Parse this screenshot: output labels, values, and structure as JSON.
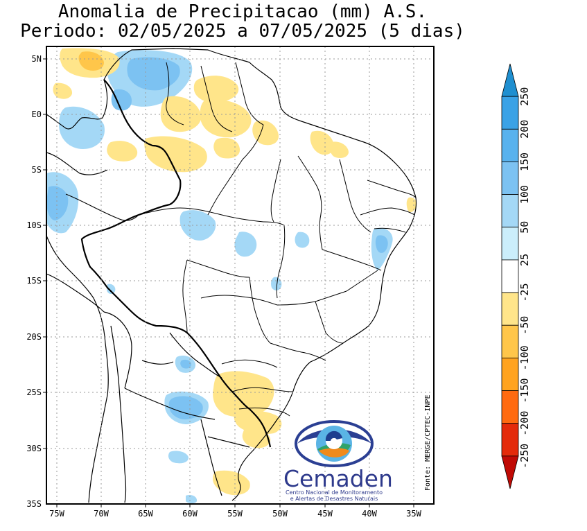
{
  "title": {
    "line1": "Anomalia de Precipitacao (mm) A.S.",
    "line2": "Periodo: 02/05/2025 a 07/05/2025 (5 dias)"
  },
  "map": {
    "lat_labels": [
      "5N",
      "E0",
      "5S",
      "10S",
      "15S",
      "20S",
      "25S",
      "30S",
      "35S"
    ],
    "lon_labels": [
      "75W",
      "70W",
      "65W",
      "60W",
      "55W",
      "50W",
      "45W",
      "40W",
      "35W"
    ],
    "source": "Fonte: MERGE/CPTEC-INPE"
  },
  "colorbar": {
    "labels": [
      "250",
      "200",
      "150",
      "100",
      "50",
      "25",
      "-25",
      "-50",
      "-100",
      "-150",
      "-200",
      "-250"
    ],
    "colors": [
      "#1f8fd0",
      "#3aa2e6",
      "#58b2ee",
      "#7cc2f2",
      "#a4d8f6",
      "#cbeefb",
      "#ffffff",
      "#ffe58a",
      "#ffc64a",
      "#ffa31f",
      "#ff6a10",
      "#e42a0a",
      "#c00a05"
    ]
  },
  "logo": {
    "name": "Cemaden",
    "subtitle1": "Centro Nacional de Monitoramento",
    "subtitle2": "e Alertas de Desastres Naturais"
  }
}
